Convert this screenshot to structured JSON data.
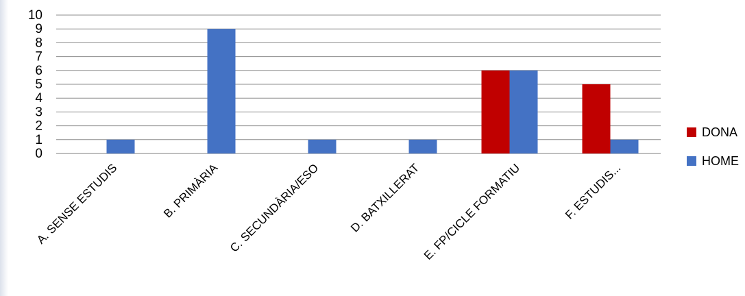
{
  "chart_data": {
    "type": "bar",
    "title": "",
    "xlabel": "",
    "ylabel": "",
    "ylim": [
      0,
      10
    ],
    "yticks": [
      0,
      1,
      2,
      3,
      4,
      5,
      6,
      7,
      8,
      9,
      10
    ],
    "grid": true,
    "legend_position": "right",
    "categories": [
      "A. SENSE ESTUDIS",
      "B. PRIMÀRIA",
      "C. SECUNDÀRIA/ESO",
      "D. BATXILLERAT",
      "E. FP/CICLE FORMATIU",
      "F. ESTUDIS..."
    ],
    "series": [
      {
        "name": "DONA",
        "color": "#C00000",
        "values": [
          0,
          0,
          0,
          0,
          6,
          5
        ]
      },
      {
        "name": "HOME",
        "color": "#4472C4",
        "values": [
          1,
          9,
          1,
          1,
          6,
          1
        ]
      }
    ]
  },
  "decor": {
    "accent_color": "#dde2ec"
  }
}
